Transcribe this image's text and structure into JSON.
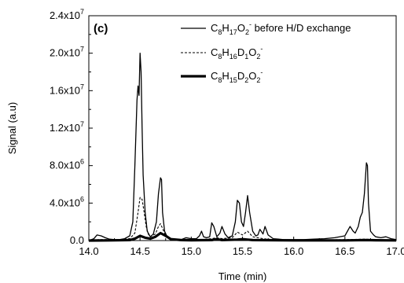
{
  "chart_data": {
    "type": "line",
    "panel_label": "(c)",
    "xlabel": "Time (min)",
    "ylabel": "Signal (a.u)",
    "xlim": [
      14.0,
      17.0
    ],
    "ylim": [
      0,
      24000000
    ],
    "x_ticks": [
      14.0,
      14.5,
      15.0,
      15.5,
      16.0,
      16.5,
      17.0
    ],
    "x_tick_labels": [
      "14.0",
      "14.5",
      "15.0",
      "15.5",
      "16.0",
      "16.5",
      "17.0"
    ],
    "y_ticks": [
      0,
      4000000,
      8000000,
      12000000,
      16000000,
      20000000,
      24000000
    ],
    "y_tick_labels": [
      {
        "mantissa": "0.0",
        "exponent": ""
      },
      {
        "mantissa": "4.0x10",
        "exponent": "6"
      },
      {
        "mantissa": "8.0x10",
        "exponent": "6"
      },
      {
        "mantissa": "1.2x10",
        "exponent": "7"
      },
      {
        "mantissa": "1.6x10",
        "exponent": "7"
      },
      {
        "mantissa": "2.0x10",
        "exponent": "7"
      },
      {
        "mantissa": "2.4x10",
        "exponent": "7"
      }
    ],
    "legend_placement": "top-right",
    "series": [
      {
        "name": "C8H17O2- before H/D exchange",
        "legend_parts": [
          {
            "t": "C",
            "sub": false
          },
          {
            "t": "8",
            "sub": true
          },
          {
            "t": "H",
            "sub": false
          },
          {
            "t": "17",
            "sub": true
          },
          {
            "t": "O",
            "sub": false
          },
          {
            "t": "2",
            "sub": true
          },
          {
            "t": "-",
            "sup": true
          },
          {
            "t": " before H/D exchange",
            "sub": false
          }
        ],
        "style": "solid-thin",
        "x": [
          14.0,
          14.05,
          14.08,
          14.12,
          14.16,
          14.2,
          14.25,
          14.3,
          14.35,
          14.4,
          14.43,
          14.45,
          14.47,
          14.48,
          14.49,
          14.5,
          14.51,
          14.52,
          14.53,
          14.55,
          14.57,
          14.6,
          14.63,
          14.66,
          14.68,
          14.7,
          14.71,
          14.72,
          14.74,
          14.76,
          14.8,
          14.85,
          14.9,
          14.95,
          15.0,
          15.05,
          15.08,
          15.1,
          15.12,
          15.15,
          15.18,
          15.2,
          15.22,
          15.25,
          15.28,
          15.3,
          15.33,
          15.36,
          15.4,
          15.43,
          15.45,
          15.47,
          15.49,
          15.51,
          15.53,
          15.55,
          15.57,
          15.6,
          15.63,
          15.65,
          15.67,
          15.7,
          15.72,
          15.75,
          15.8,
          15.85,
          15.9,
          16.0,
          16.1,
          16.2,
          16.3,
          16.4,
          16.5,
          16.55,
          16.58,
          16.6,
          16.63,
          16.65,
          16.67,
          16.69,
          16.71,
          16.72,
          16.73,
          16.75,
          16.78,
          16.8,
          16.85,
          16.9,
          16.95,
          17.0
        ],
        "y": [
          0,
          200000,
          600000,
          500000,
          300000,
          150000,
          100000,
          100000,
          200000,
          500000,
          2000000,
          8000000,
          15000000,
          16500000,
          15500000,
          20000000,
          18000000,
          12000000,
          7000000,
          3000000,
          1000000,
          400000,
          700000,
          2000000,
          5000000,
          6700000,
          6500000,
          3000000,
          1000000,
          500000,
          200000,
          100000,
          100000,
          300000,
          200000,
          200000,
          500000,
          1000000,
          400000,
          300000,
          400000,
          1900000,
          1500000,
          400000,
          800000,
          1500000,
          700000,
          300000,
          500000,
          2000000,
          4300000,
          4000000,
          2000000,
          1500000,
          3000000,
          4800000,
          3000000,
          1000000,
          500000,
          600000,
          1200000,
          700000,
          1500000,
          600000,
          200000,
          150000,
          100000,
          100000,
          100000,
          150000,
          200000,
          300000,
          500000,
          1500000,
          1000000,
          800000,
          1500000,
          2500000,
          3000000,
          5000000,
          8300000,
          8000000,
          4000000,
          1000000,
          600000,
          400000,
          300000,
          400000,
          200000,
          100000
        ]
      },
      {
        "name": "C8H16D1O2-",
        "legend_parts": [
          {
            "t": "C",
            "sub": false
          },
          {
            "t": "8",
            "sub": true
          },
          {
            "t": "H",
            "sub": false
          },
          {
            "t": "16",
            "sub": true
          },
          {
            "t": "D",
            "sub": false
          },
          {
            "t": "1",
            "sub": true
          },
          {
            "t": "O",
            "sub": false
          },
          {
            "t": "2",
            "sub": true
          },
          {
            "t": "-",
            "sup": true
          }
        ],
        "style": "dashed",
        "x": [
          14.0,
          14.1,
          14.2,
          14.3,
          14.4,
          14.45,
          14.48,
          14.5,
          14.52,
          14.54,
          14.56,
          14.58,
          14.6,
          14.65,
          14.68,
          14.7,
          14.72,
          14.75,
          14.8,
          14.9,
          15.0,
          15.1,
          15.2,
          15.25,
          15.3,
          15.4,
          15.45,
          15.5,
          15.55,
          15.6,
          15.7,
          15.8,
          16.0,
          16.2,
          16.5,
          16.7,
          16.8,
          17.0
        ],
        "y": [
          0,
          100000,
          100000,
          100000,
          200000,
          800000,
          3000000,
          4600000,
          4400000,
          3000000,
          1500000,
          700000,
          400000,
          700000,
          1500000,
          1800000,
          1300000,
          500000,
          200000,
          100000,
          100000,
          100000,
          200000,
          300000,
          200000,
          300000,
          900000,
          600000,
          1000000,
          400000,
          200000,
          100000,
          50000,
          50000,
          100000,
          150000,
          100000,
          50000
        ]
      },
      {
        "name": "C8H15D2O2-",
        "legend_parts": [
          {
            "t": "C",
            "sub": false
          },
          {
            "t": "8",
            "sub": true
          },
          {
            "t": "H",
            "sub": false
          },
          {
            "t": "15",
            "sub": true
          },
          {
            "t": "D",
            "sub": false
          },
          {
            "t": "2",
            "sub": true
          },
          {
            "t": "O",
            "sub": false
          },
          {
            "t": "2",
            "sub": true
          },
          {
            "t": "-",
            "sup": true
          }
        ],
        "style": "solid-thick",
        "x": [
          14.0,
          14.2,
          14.4,
          14.45,
          14.5,
          14.55,
          14.6,
          14.65,
          14.7,
          14.75,
          14.8,
          14.9,
          15.0,
          15.2,
          15.25,
          15.3,
          15.45,
          15.5,
          15.55,
          15.6,
          16.0,
          16.5,
          16.7,
          16.8,
          17.0
        ],
        "y": [
          0,
          20000,
          50000,
          200000,
          500000,
          300000,
          200000,
          400000,
          800000,
          500000,
          150000,
          50000,
          30000,
          50000,
          150000,
          50000,
          100000,
          150000,
          100000,
          50000,
          20000,
          20000,
          50000,
          30000,
          20000
        ]
      }
    ]
  }
}
